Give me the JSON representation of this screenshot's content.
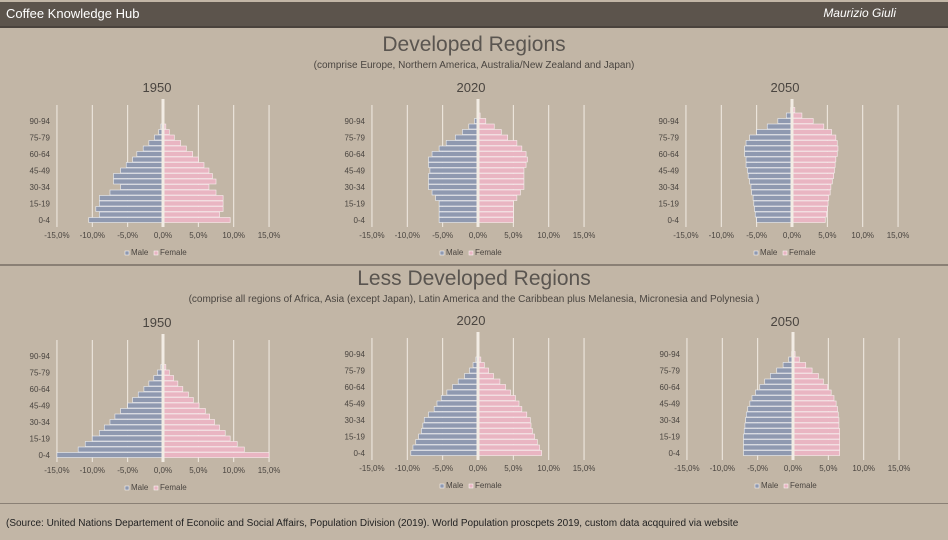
{
  "header": {
    "title": "Coffee Knowledge Hub",
    "author": "Maurizio Giuli"
  },
  "sections": [
    {
      "title": "Developed Regions",
      "subtitle": "(comprise Europe, Northern America, Australia/New Zealand and Japan)"
    },
    {
      "title": "Less Developed Regions",
      "subtitle": "(comprise all regions of Africa, Asia (except Japan), Latin America and the Caribbean plus Melanesia, Micronesia and Polynesia      )"
    }
  ],
  "source": "(Source: United Nations Departement  of Econoiic  and Social Affairs, Population Division (2019). World Population  proscpets 2019, custom data acqquired  via website",
  "colors": {
    "male": "#8f99b0",
    "female": "#e9b5c2"
  },
  "chart_data": {
    "type": "bar",
    "orientation": "horizontal population pyramid",
    "categories": [
      "0-4",
      "5-9",
      "10-14",
      "15-19",
      "20-24",
      "25-29",
      "30-34",
      "35-39",
      "40-44",
      "45-49",
      "50-54",
      "55-59",
      "60-64",
      "65-69",
      "70-74",
      "75-79",
      "80-84",
      "85-89",
      "90-94",
      "95-99",
      "100+"
    ],
    "shown_tick_labels": [
      "0-4",
      "15-19",
      "30-34",
      "45-49",
      "60-64",
      "75-79",
      "90-94"
    ],
    "x_ticks": [
      "-15,0%",
      "-10,0%",
      "-5,0%",
      "0,0%",
      "5,0%",
      "10,0%",
      "15,0%"
    ],
    "xlim": [
      -15,
      15
    ],
    "legend": [
      "Male",
      "Female"
    ],
    "legend_position": "bottom",
    "charts": [
      {
        "title": "1950",
        "male": [
          10.5,
          9,
          9.5,
          9,
          9,
          7.5,
          6,
          7,
          7,
          6,
          5.2,
          4.3,
          3.7,
          2.8,
          2,
          1.2,
          0.6,
          0.3,
          0.1,
          0.05,
          0
        ],
        "female": [
          9.5,
          8,
          8.5,
          8.5,
          8.5,
          7.5,
          6.5,
          7.5,
          7,
          6.5,
          5.8,
          5,
          4.2,
          3.3,
          2.5,
          1.6,
          0.9,
          0.4,
          0.15,
          0.05,
          0
        ]
      },
      {
        "title": "2020",
        "male": [
          5.5,
          5.5,
          5.5,
          5.5,
          6,
          6.5,
          7,
          7,
          7,
          6.8,
          7,
          7,
          6.5,
          5.5,
          4.5,
          3.2,
          2.2,
          1.3,
          0.5,
          0.1,
          0
        ],
        "female": [
          5,
          5,
          5,
          5,
          5.5,
          6,
          6.5,
          6.5,
          6.5,
          6.5,
          6.8,
          7,
          6.8,
          6.2,
          5.5,
          4.2,
          3.3,
          2.3,
          1.1,
          0.3,
          0.05
        ]
      },
      {
        "title": "2050",
        "male": [
          5,
          5.2,
          5.3,
          5.4,
          5.5,
          5.7,
          5.8,
          6,
          6.2,
          6.3,
          6.5,
          6.5,
          6.7,
          6.7,
          6.5,
          6,
          5,
          3.5,
          2,
          0.8,
          0.2
        ],
        "female": [
          4.7,
          4.9,
          5,
          5.1,
          5.2,
          5.4,
          5.5,
          5.7,
          5.9,
          6,
          6.1,
          6.2,
          6.4,
          6.5,
          6.4,
          6.2,
          5.6,
          4.5,
          3,
          1.4,
          0.4
        ]
      },
      {
        "title": "1950",
        "male": [
          15,
          12,
          11,
          10,
          9,
          8.3,
          7.5,
          6.8,
          6,
          5,
          4.3,
          3.5,
          2.7,
          2,
          1.3,
          0.8,
          0.3,
          0.1,
          0.05,
          0,
          0
        ],
        "female": [
          15,
          11.5,
          10.5,
          9.5,
          8.8,
          8,
          7.3,
          6.6,
          6,
          5.1,
          4.3,
          3.6,
          2.8,
          2.1,
          1.5,
          0.9,
          0.4,
          0.15,
          0.05,
          0,
          0
        ]
      },
      {
        "title": "2020",
        "male": [
          9.5,
          9.2,
          8.8,
          8.4,
          8,
          7.8,
          7.6,
          7,
          6.2,
          5.8,
          5.2,
          4.4,
          3.6,
          2.8,
          1.9,
          1.2,
          0.7,
          0.3,
          0.1,
          0,
          0
        ],
        "female": [
          9,
          8.7,
          8.4,
          8,
          7.7,
          7.5,
          7.4,
          6.9,
          6.2,
          5.8,
          5.3,
          4.6,
          3.9,
          3.1,
          2.2,
          1.5,
          0.9,
          0.4,
          0.15,
          0.03,
          0
        ]
      },
      {
        "title": "2050",
        "male": [
          7,
          7,
          7,
          7,
          6.9,
          6.8,
          6.7,
          6.6,
          6.4,
          6.1,
          5.8,
          5.3,
          4.7,
          4,
          3.2,
          2.3,
          1.4,
          0.6,
          0.2,
          0.05,
          0
        ],
        "female": [
          6.6,
          6.6,
          6.6,
          6.6,
          6.6,
          6.5,
          6.5,
          6.4,
          6.3,
          6.1,
          5.8,
          5.4,
          4.9,
          4.3,
          3.6,
          2.7,
          1.8,
          0.9,
          0.3,
          0.08,
          0.01
        ]
      }
    ]
  }
}
